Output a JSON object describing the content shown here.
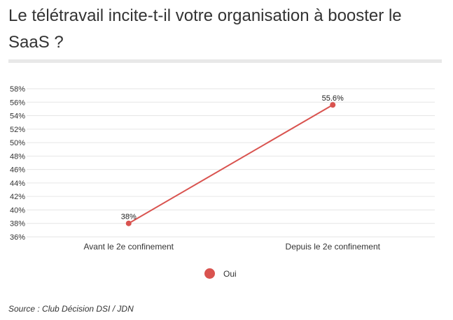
{
  "page": {
    "title": "Le télétravail incite-t-il votre organisation à booster le SaaS  ?",
    "source": "Source :  Club Décision DSI / JDN"
  },
  "chart_data": {
    "type": "line",
    "title": "Le télétravail incite-t-il votre organisation à booster le SaaS  ?",
    "categories": [
      "Avant le 2e confinement",
      "Depuis le 2e confinement"
    ],
    "series": [
      {
        "name": "Oui",
        "values": [
          38,
          55.6
        ],
        "labels": [
          "38%",
          "55.6%"
        ],
        "color": "#d9534f"
      }
    ],
    "ylim": [
      36,
      58
    ],
    "yticks": [
      "58%",
      "56%",
      "54%",
      "52%",
      "50%",
      "48%",
      "46%",
      "44%",
      "42%",
      "40%",
      "38%",
      "36%"
    ],
    "grid": true,
    "legend": "bottom-center",
    "xlabel": "",
    "ylabel": ""
  }
}
